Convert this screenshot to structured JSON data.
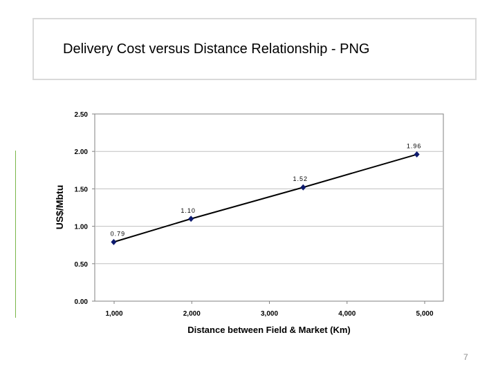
{
  "slide": {
    "title": "Delivery Cost versus Distance Relationship - PNG",
    "page_number": "7"
  },
  "colors": {
    "line": "#000000",
    "marker": "#0d1a6e",
    "grid": "#bfbfbf",
    "accent_rule": "#7ab648"
  },
  "chart_data": {
    "type": "line",
    "title": "",
    "xlabel": "Distance between Field & Market (Km)",
    "ylabel": "US$/Mbtu",
    "x_ticks": [
      "1,000",
      "2,000",
      "3,000",
      "4,000",
      "5,000"
    ],
    "y_ticks": [
      "0.00",
      "0.50",
      "1.00",
      "1.50",
      "2.00",
      "2.50"
    ],
    "xlim": [
      780,
      5380
    ],
    "ylim": [
      0,
      2.5
    ],
    "grid": true,
    "series": [
      {
        "x": [
          1030,
          2050,
          3530,
          5030
        ],
        "values": [
          0.79,
          1.1,
          1.52,
          1.96
        ],
        "data_labels": [
          "0.79",
          "1.10",
          "1.52",
          "1.96"
        ]
      }
    ]
  }
}
